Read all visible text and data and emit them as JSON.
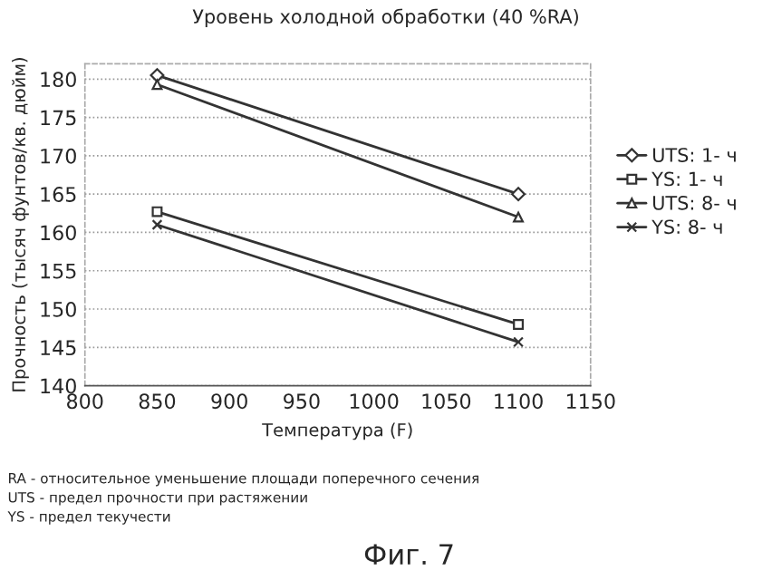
{
  "chart_data": {
    "type": "line",
    "title": "Уровень холодной обработки (40 %RA)",
    "xlabel": "Температура (F)",
    "ylabel": "Прочность (тысяч фунтов/кв. дюйм)",
    "x": [
      850,
      1100
    ],
    "series": [
      {
        "name": "UTS: 1- ч",
        "color": "#333333",
        "marker": "diamond",
        "values": [
          180.5,
          165
        ]
      },
      {
        "name": "YS: 1- ч",
        "color": "#333333",
        "marker": "square",
        "values": [
          162.7,
          148
        ]
      },
      {
        "name": "UTS: 8- ч",
        "color": "#333333",
        "marker": "triangle",
        "values": [
          179.3,
          162
        ]
      },
      {
        "name": "YS: 8- ч",
        "color": "#333333",
        "marker": "cross",
        "values": [
          161,
          145.7
        ]
      }
    ],
    "xlim": [
      800,
      1150
    ],
    "xticks": [
      800,
      850,
      900,
      950,
      1000,
      1050,
      1100,
      1150
    ],
    "ylim": [
      140,
      182
    ],
    "yticks": [
      140,
      145,
      150,
      155,
      160,
      165,
      170,
      175,
      180
    ],
    "grid": "y",
    "legend": "right",
    "line_style": "solid",
    "annotations": [
      "RA - относительное уменьшение площади поперечного сечения",
      "UTS - предел прочности при растяжении",
      "YS - предел текучести",
      "Фиг. 7"
    ]
  }
}
